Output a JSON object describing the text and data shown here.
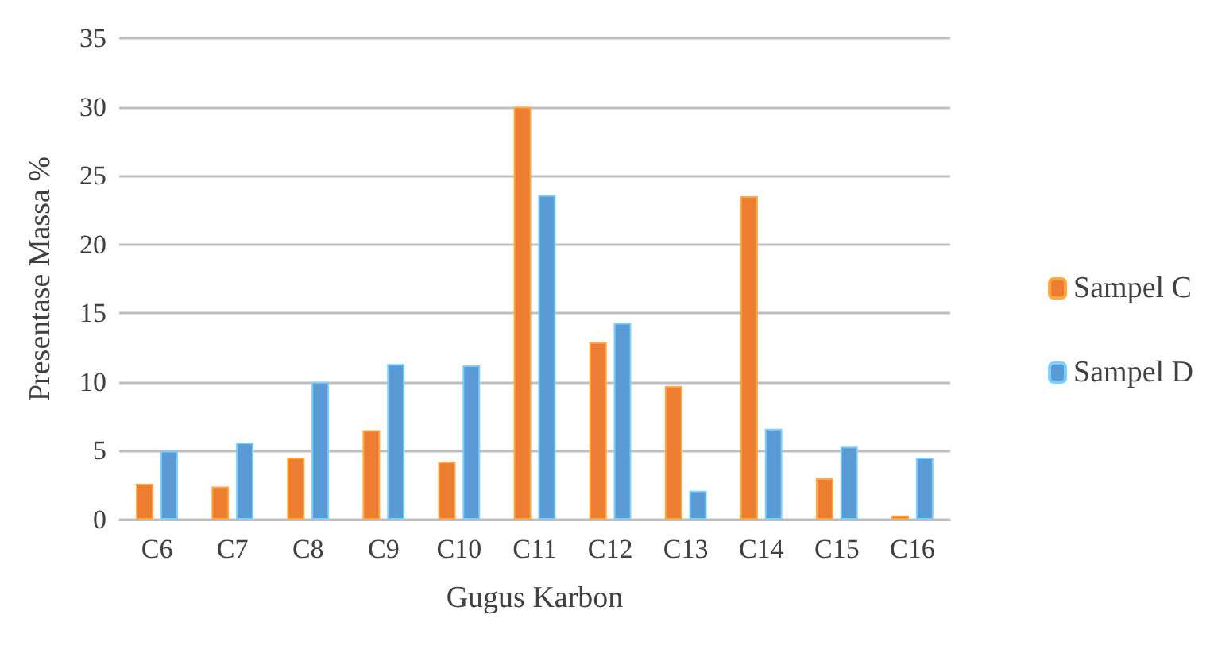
{
  "chart_data": {
    "type": "bar",
    "xlabel": "Gugus Karbon",
    "ylabel": "Presentase Massa %",
    "categories": [
      "C6",
      "C7",
      "C8",
      "C9",
      "C10",
      "C11",
      "C12",
      "C13",
      "C14",
      "C15",
      "C16"
    ],
    "series": [
      {
        "name": "Sampel C",
        "color": "#ed7d31",
        "values": [
          2.6,
          2.4,
          4.5,
          6.5,
          4.2,
          30,
          12.9,
          9.7,
          23.5,
          3.0,
          0.3
        ]
      },
      {
        "name": "Sampel D",
        "color": "#5b9bd5",
        "values": [
          5.0,
          5.6,
          10,
          11.3,
          11.2,
          23.6,
          14.3,
          2.1,
          6.6,
          5.3,
          4.5
        ]
      }
    ],
    "ylim": [
      0,
      35
    ],
    "yticks": [
      0,
      5,
      10,
      15,
      20,
      25,
      30,
      35
    ],
    "grid": "y",
    "legend": "right"
  }
}
